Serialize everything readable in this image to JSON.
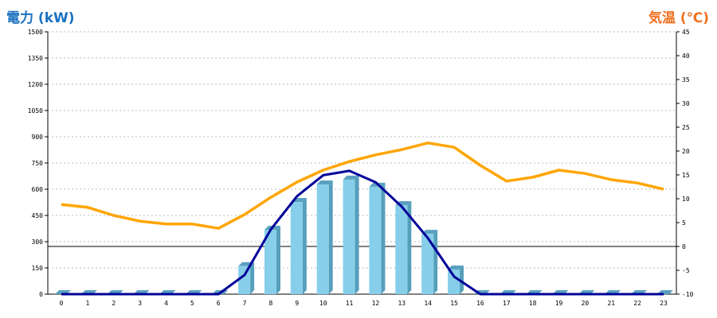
{
  "chart_data": {
    "type": "bar+line",
    "left_axis_title": "電力 (kW)",
    "right_axis_title": "気温 (℃)",
    "left_ylim": [
      0,
      1500
    ],
    "left_ticks": [
      0,
      150,
      300,
      450,
      600,
      750,
      900,
      1050,
      1200,
      1350,
      1500
    ],
    "right_ylim": [
      -10,
      45
    ],
    "right_ticks": [
      -10,
      -5,
      0,
      5,
      10,
      15,
      20,
      25,
      30,
      35,
      40,
      45
    ],
    "x": [
      0,
      1,
      2,
      3,
      4,
      5,
      6,
      7,
      8,
      9,
      10,
      11,
      12,
      13,
      14,
      15,
      16,
      17,
      18,
      19,
      20,
      21,
      22,
      23
    ],
    "series": [
      {
        "name": "power_actual",
        "type": "bar",
        "axis": "left",
        "color": "#87ceea",
        "values": [
          0,
          0,
          0,
          0,
          0,
          0,
          0,
          160,
          368,
          527,
          627,
          655,
          614,
          509,
          345,
          141,
          0,
          0,
          0,
          0,
          0,
          0,
          0,
          0
        ]
      },
      {
        "name": "power_forecast",
        "type": "line",
        "axis": "left",
        "color": "#000099",
        "values": [
          0,
          0,
          0,
          0,
          0,
          0,
          0,
          110,
          370,
          560,
          680,
          705,
          640,
          500,
          320,
          100,
          0,
          0,
          0,
          0,
          0,
          0,
          0,
          0
        ]
      },
      {
        "name": "temperature",
        "type": "line",
        "axis": "right",
        "color": "#ffa500",
        "values": [
          8.8,
          8.2,
          6.5,
          5.3,
          4.7,
          4.7,
          3.8,
          6.7,
          10.3,
          13.5,
          16,
          17.8,
          19.2,
          20.3,
          21.7,
          20.8,
          17,
          13.7,
          14.5,
          16,
          15.3,
          14,
          13.3,
          12
        ]
      }
    ],
    "grid": true
  }
}
